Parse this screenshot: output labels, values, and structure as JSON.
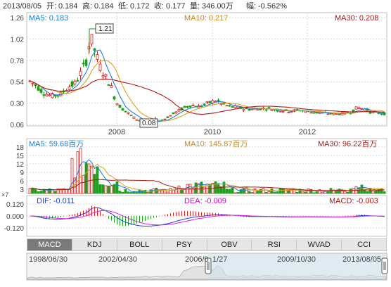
{
  "header": {
    "date": "2013/08/05",
    "open_label": "开:",
    "open": "0.184",
    "high_label": "高:",
    "high": "0.184",
    "low_label": "低:",
    "low": "0.172",
    "close_label": "收:",
    "close": "0.177",
    "vol_label": "量:",
    "vol": "346.00万",
    "chg_label": "幅:",
    "chg": "-0.562%"
  },
  "price_panel": {
    "ma5": "MA5: 0.183",
    "ma10": "MA10: 0.217",
    "ma30": "MA30: 0.208",
    "y_ticks": [
      "1.26",
      "1.02",
      "0.78",
      "0.54",
      "0.30",
      "0.06"
    ],
    "y_values": [
      1.26,
      1.02,
      0.78,
      0.54,
      0.3,
      0.06
    ],
    "x_ticks": [
      "2008",
      "2010",
      "2012"
    ],
    "high_marker": "1.21",
    "low_marker": "0.08"
  },
  "volume_panel": {
    "ma5": "MA5: 59.68百万",
    "ma10": "MA10: 145.87百万",
    "ma30": "MA30: 96.22百万",
    "y_ticks": [
      "18",
      "15",
      "12",
      "9",
      "6",
      "3"
    ],
    "unit": "×7"
  },
  "macd_panel": {
    "dif": "DIF: -0.011",
    "dea": "DEA: -0.009",
    "macd": "MACD: -0.003",
    "y_ticks": [
      "0.120",
      "0.000",
      "-0.120"
    ]
  },
  "tabs": [
    "MACD",
    "KDJ",
    "BOLL",
    "PSY",
    "OBV",
    "RSI",
    "WVAD",
    "CCI"
  ],
  "active_tab": "MACD",
  "navigator": {
    "labels": [
      "1998/06/30",
      "2002/04/30",
      "2006/0",
      "1/27",
      "2009/10/30",
      "2013/08/05"
    ]
  },
  "colors": {
    "up": "#d42020",
    "down": "#1aa01a",
    "ma5": "#1e7fd8",
    "ma10": "#e0a020",
    "ma30": "#b01818",
    "grid": "#d8d8d8",
    "axis_text": "#444444",
    "header_text": "#333333",
    "ma5_label": "#1e7fd8",
    "ma10_label": "#d08a10",
    "ma30_label": "#b01818",
    "dif_line": "#1e3fd8",
    "dea_line": "#e020e0"
  },
  "chart_data": {
    "type": "candlestick",
    "price_range": [
      0.06,
      1.3
    ],
    "x_labels": [
      "2008",
      "2010",
      "2012"
    ],
    "note_series": [
      "MA5",
      "MA10",
      "MA30"
    ]
  }
}
